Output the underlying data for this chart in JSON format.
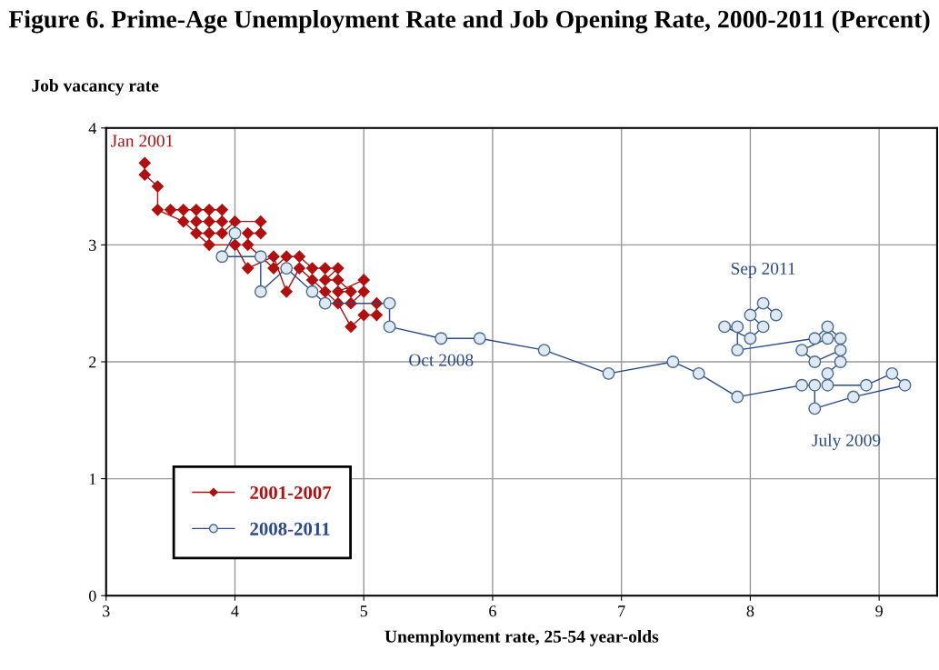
{
  "chart_data": {
    "type": "line",
    "title": "Figure 6. Prime-Age Unemployment Rate and Job Opening Rate, 2000-2011 (Percent)",
    "xlabel": "Unemployment rate, 25-54 year-olds",
    "ylabel": "Job vacancy rate",
    "xlim": [
      3,
      9.45
    ],
    "xticks": [
      3,
      4,
      5,
      6,
      7,
      8,
      9
    ],
    "ylim": [
      0,
      4
    ],
    "yticks": [
      0,
      1,
      2,
      3,
      4
    ],
    "grid": true,
    "legend": "bottom left",
    "series": [
      {
        "name": "2001-2007",
        "color": "#b01010",
        "marker": "diamond",
        "x": [
          3.3,
          3.3,
          3.4,
          3.4,
          3.6,
          3.8,
          4.0,
          4.1,
          4.3,
          4.4,
          4.5,
          4.6,
          4.7,
          4.8,
          4.9,
          5.0,
          5.1,
          5.1,
          4.9,
          5.0,
          5.0,
          4.8,
          4.9,
          4.8,
          4.7,
          4.8,
          4.7,
          4.6,
          4.5,
          4.4,
          4.3,
          4.1,
          4.1,
          4.2,
          4.2,
          4.0,
          3.9,
          3.8,
          3.7,
          3.7,
          3.8,
          3.9,
          3.9,
          3.8,
          3.7,
          3.6,
          3.5
        ],
        "values": [
          3.7,
          3.6,
          3.5,
          3.3,
          3.2,
          3.0,
          3.0,
          2.8,
          2.9,
          2.6,
          2.8,
          2.7,
          2.6,
          2.5,
          2.3,
          2.4,
          2.4,
          2.5,
          2.5,
          2.6,
          2.7,
          2.6,
          2.6,
          2.7,
          2.7,
          2.8,
          2.8,
          2.8,
          2.9,
          2.9,
          2.8,
          3.0,
          3.1,
          3.1,
          3.2,
          3.2,
          3.1,
          3.1,
          3.1,
          3.2,
          3.2,
          3.2,
          3.3,
          3.3,
          3.3,
          3.3,
          3.3
        ]
      },
      {
        "name": "2008-2011",
        "color": "#2a4a8a",
        "marker": "circle",
        "x": [
          4.0,
          3.9,
          4.2,
          4.2,
          4.4,
          4.6,
          4.7,
          5.2,
          5.2,
          5.6,
          5.9,
          6.4,
          6.9,
          7.4,
          7.6,
          7.9,
          8.4,
          8.5,
          8.5,
          8.8,
          9.2,
          9.1,
          8.9,
          8.6,
          8.6,
          8.7,
          8.7,
          8.5,
          8.4,
          8.6,
          8.7,
          8.6,
          8.5,
          7.9,
          7.9,
          7.8,
          8.0,
          8.1,
          8.0,
          8.1,
          8.2
        ],
        "values": [
          3.1,
          2.9,
          2.9,
          2.6,
          2.8,
          2.6,
          2.5,
          2.5,
          2.3,
          2.2,
          2.2,
          2.1,
          1.9,
          2.0,
          1.9,
          1.7,
          1.8,
          1.8,
          1.6,
          1.7,
          1.8,
          1.9,
          1.8,
          1.8,
          1.9,
          2.0,
          2.1,
          2.0,
          2.1,
          2.2,
          2.2,
          2.3,
          2.2,
          2.1,
          2.3,
          2.3,
          2.2,
          2.3,
          2.4,
          2.5,
          2.4
        ]
      }
    ],
    "annotations": [
      {
        "text": "Jan 2001",
        "x": 3.3,
        "y": 3.7
      },
      {
        "text": "Oct 2008",
        "x": 5.6,
        "y": 2.2
      },
      {
        "text": "July 2009",
        "x": 8.5,
        "y": 1.6
      },
      {
        "text": "Sep 2011",
        "x": 8.1,
        "y": 2.5
      }
    ]
  }
}
